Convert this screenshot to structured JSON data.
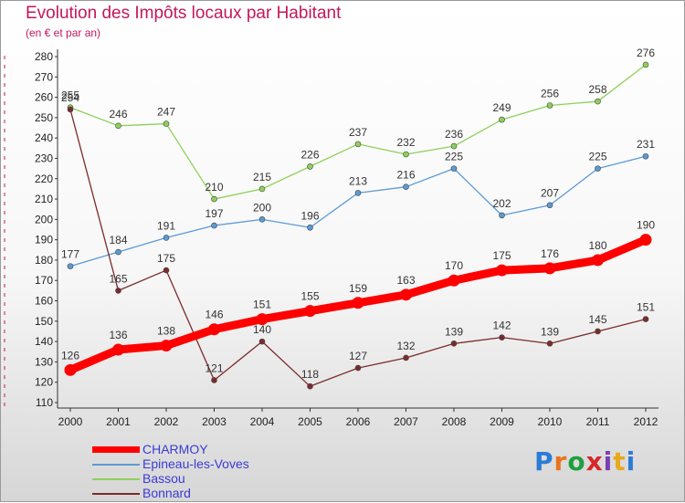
{
  "header": {
    "title": "Evolution des Impôts locaux par Habitant",
    "subtitle": "(en € et par an)"
  },
  "logo": {
    "text": "Proxiti",
    "colors": [
      "#2b7bd6",
      "#e8731c",
      "#1e9f3e",
      "#d62828",
      "#7b3fb5",
      "#e8a81c",
      "#2b7bd6"
    ]
  },
  "chart_data": {
    "type": "line",
    "title": "Evolution des Impôts locaux par Habitant",
    "subtitle": "(en € et par an)",
    "x": [
      "2000",
      "2001",
      "2002",
      "2003",
      "2004",
      "2005",
      "2006",
      "2007",
      "2008",
      "2009",
      "2010",
      "2011",
      "2012"
    ],
    "ylim": [
      110,
      280
    ],
    "yticks": [
      110,
      120,
      130,
      140,
      150,
      160,
      170,
      180,
      190,
      200,
      210,
      220,
      230,
      240,
      250,
      260,
      270,
      280
    ],
    "grid": "none",
    "legend": "bottom-left",
    "series": [
      {
        "name": "CHARMOY",
        "color": "#ff0000",
        "values": [
          126,
          136,
          138,
          146,
          151,
          155,
          159,
          163,
          170,
          175,
          176,
          180,
          190
        ]
      },
      {
        "name": "Epineau-les-Voves",
        "color": "#5b9bd5",
        "values": [
          177,
          184,
          191,
          197,
          200,
          196,
          213,
          216,
          225,
          202,
          207,
          225,
          231
        ]
      },
      {
        "name": "Bassou",
        "color": "#8ed05a",
        "values": [
          255,
          246,
          247,
          210,
          215,
          226,
          237,
          232,
          236,
          249,
          256,
          258,
          276
        ]
      },
      {
        "name": "Bonnard",
        "color": "#7b2b2b",
        "values": [
          254,
          165,
          175,
          121,
          140,
          118,
          127,
          132,
          139,
          142,
          139,
          145,
          151
        ]
      }
    ]
  }
}
